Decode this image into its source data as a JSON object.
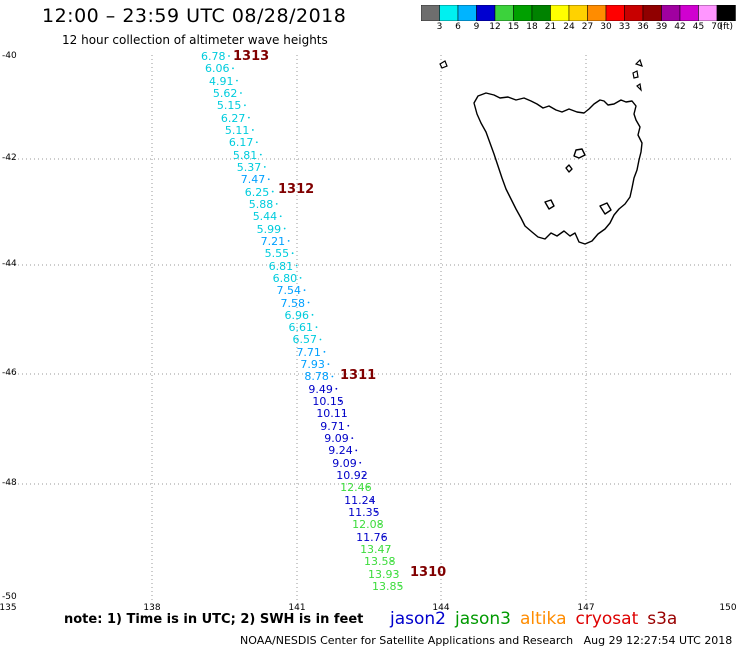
{
  "header": {
    "title": "12:00 – 23:59 UTC 08/28/2018",
    "subtitle": "12 hour collection of altimeter wave heights"
  },
  "colorbar": {
    "colors": [
      "#6e6e6e",
      "#00f0f0",
      "#00b4ff",
      "#0000d0",
      "#3cd23c",
      "#00a000",
      "#008200",
      "#ffff00",
      "#ffd200",
      "#ff8c00",
      "#ff0000",
      "#c80000",
      "#900000",
      "#a000a0",
      "#d000d0",
      "#ff96ff",
      "#000000"
    ],
    "labels": [
      "3",
      "6",
      "9",
      "12",
      "15",
      "18",
      "21",
      "24",
      "27",
      "30",
      "33",
      "36",
      "39",
      "42",
      "45",
      "70",
      "(ft)"
    ]
  },
  "map": {
    "lat_labels": [
      "-40",
      "-42",
      "-44",
      "-46",
      "-48",
      "-50"
    ],
    "lon_labels": [
      "135",
      "138",
      "141",
      "144",
      "147",
      "150"
    ],
    "track_points": [
      {
        "value": "6.78",
        "color": "#00ccdd"
      },
      {
        "value": "6.06",
        "color": "#00ccdd"
      },
      {
        "value": "4.91",
        "color": "#00ccdd"
      },
      {
        "value": "5.62",
        "color": "#00ccdd"
      },
      {
        "value": "5.15",
        "color": "#00ccdd"
      },
      {
        "value": "6.27",
        "color": "#00ccdd"
      },
      {
        "value": "5.11",
        "color": "#00ccdd"
      },
      {
        "value": "6.17",
        "color": "#00ccdd"
      },
      {
        "value": "5.81",
        "color": "#00ccdd"
      },
      {
        "value": "5.37",
        "color": "#00ccdd"
      },
      {
        "value": "7.47",
        "color": "#00a0ff"
      },
      {
        "value": "6.25",
        "color": "#00ccdd"
      },
      {
        "value": "5.88",
        "color": "#00ccdd"
      },
      {
        "value": "5.44",
        "color": "#00ccdd"
      },
      {
        "value": "5.99",
        "color": "#00ccdd"
      },
      {
        "value": "7.21",
        "color": "#00a0ff"
      },
      {
        "value": "5.55",
        "color": "#00ccdd"
      },
      {
        "value": "6.81",
        "color": "#00ccdd"
      },
      {
        "value": "6.80",
        "color": "#00ccdd"
      },
      {
        "value": "7.54",
        "color": "#00a0ff"
      },
      {
        "value": "7.58",
        "color": "#00a0ff"
      },
      {
        "value": "6.96",
        "color": "#00ccdd"
      },
      {
        "value": "6.61",
        "color": "#00ccdd"
      },
      {
        "value": "6.57",
        "color": "#00ccdd"
      },
      {
        "value": "7.71",
        "color": "#00a0ff"
      },
      {
        "value": "7.93",
        "color": "#00a0ff"
      },
      {
        "value": "8.78",
        "color": "#00a0ff"
      },
      {
        "value": "9.49",
        "color": "#0000c8"
      },
      {
        "value": "10.15",
        "color": "#0000c8"
      },
      {
        "value": "10.11",
        "color": "#0000c8"
      },
      {
        "value": "9.71",
        "color": "#0000c8"
      },
      {
        "value": "9.09",
        "color": "#0000c8"
      },
      {
        "value": "9.24",
        "color": "#0000c8"
      },
      {
        "value": "9.09",
        "color": "#0000c8"
      },
      {
        "value": "10.92",
        "color": "#0000c8"
      },
      {
        "value": "12.46",
        "color": "#3cdc3c"
      },
      {
        "value": "11.24",
        "color": "#0000c8"
      },
      {
        "value": "11.35",
        "color": "#0000c8"
      },
      {
        "value": "12.08",
        "color": "#3cdc3c"
      },
      {
        "value": "11.76",
        "color": "#0000c8"
      },
      {
        "value": "13.47",
        "color": "#3cdc3c"
      },
      {
        "value": "13.58",
        "color": "#3cdc3c"
      },
      {
        "value": "13.93",
        "color": "#3cdc3c"
      },
      {
        "value": "13.85",
        "color": "#3cdc3c"
      }
    ],
    "rev_labels": [
      "1313",
      "1312",
      "1311",
      "1310"
    ]
  },
  "note": "note: 1) Time is in UTC; 2) SWH is in feet",
  "legend": [
    {
      "label": "jason2",
      "color": "#0000cc"
    },
    {
      "label": "jason3",
      "color": "#009900"
    },
    {
      "label": "altika",
      "color": "#ff8c00"
    },
    {
      "label": "cryosat",
      "color": "#dd0000"
    },
    {
      "label": "s3a",
      "color": "#990000"
    }
  ],
  "footer": {
    "source": "NOAA/NESDIS Center for Satellite Applications and Research",
    "timestamp": "Aug 29 12:27:54 UTC 2018"
  }
}
